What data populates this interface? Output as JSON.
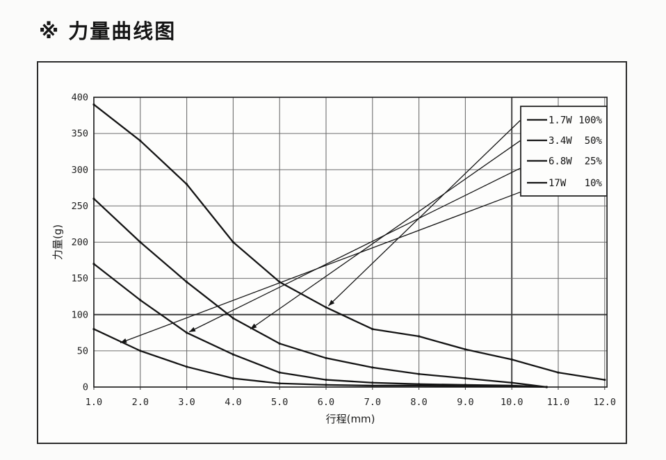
{
  "page": {
    "title": "※ 力量曲线图"
  },
  "chart_data": {
    "type": "line",
    "title": "※ 力量曲线图",
    "xlabel": "行程(mm)",
    "ylabel": "力量(g)",
    "xlim": [
      1.0,
      12.05
    ],
    "ylim": [
      0,
      400
    ],
    "x_tick_values": [
      1,
      2,
      3,
      4,
      5,
      6,
      7,
      8,
      9,
      10,
      11,
      12
    ],
    "x_ticks": [
      "1.0",
      "2.0",
      "3.0",
      "4.0",
      "5.0",
      "6.0",
      "7.0",
      "8.0",
      "9.0",
      "10.0",
      "11.0",
      "12.0"
    ],
    "y_tick_values": [
      0,
      50,
      100,
      150,
      200,
      250,
      300,
      350,
      400
    ],
    "y_ticks": [
      "0",
      "50",
      "100",
      "150",
      "200",
      "250",
      "300",
      "350",
      "400"
    ],
    "grid": "on",
    "emphasized_gridlines": {
      "x": 10,
      "y": 100
    },
    "series": [
      {
        "name": "1.7W 100%",
        "x": [
          1,
          2,
          3,
          4,
          5,
          6,
          7,
          8,
          9,
          10,
          11,
          12
        ],
        "values": [
          390,
          340,
          280,
          200,
          145,
          110,
          80,
          70,
          52,
          38,
          20,
          10
        ]
      },
      {
        "name": "3.4W 50%",
        "x": [
          1,
          2,
          3,
          4,
          5,
          6,
          7,
          8,
          9,
          10,
          10.75
        ],
        "values": [
          260,
          200,
          145,
          95,
          60,
          40,
          27,
          18,
          12,
          6,
          0
        ]
      },
      {
        "name": "6.8W 25%",
        "x": [
          1,
          2,
          3,
          4,
          5,
          6,
          7,
          8,
          9,
          10,
          10.75
        ],
        "values": [
          170,
          120,
          75,
          45,
          20,
          10,
          6,
          4,
          3,
          2,
          0
        ]
      },
      {
        "name": "17W 10%",
        "x": [
          1,
          2,
          3,
          4,
          5,
          6,
          7,
          8,
          9,
          10,
          10.75
        ],
        "values": [
          80,
          50,
          28,
          12,
          5,
          3,
          2,
          2,
          1,
          1,
          0
        ]
      }
    ],
    "legend": {
      "position": "top-right",
      "items": [
        {
          "label": "1.7W",
          "pct": "100%"
        },
        {
          "label": "3.4W",
          "pct": "50%"
        },
        {
          "label": "6.8W",
          "pct": "25%"
        },
        {
          "label": "17W",
          "pct": "10%"
        }
      ]
    },
    "annotations": [
      {
        "type": "leader-arrow",
        "series": "1.7W 100%",
        "from_x": 10.18,
        "from_y": 368,
        "to_x": 6.05,
        "to_y": 112
      },
      {
        "type": "leader-arrow",
        "series": "3.4W 50%",
        "from_x": 10.18,
        "from_y": 340,
        "to_x": 4.37,
        "to_y": 80
      },
      {
        "type": "leader-arrow",
        "series": "6.8W 25%",
        "from_x": 10.18,
        "from_y": 302,
        "to_x": 3.05,
        "to_y": 76
      },
      {
        "type": "leader-arrow",
        "series": "17W 10%",
        "from_x": 10.18,
        "from_y": 269,
        "to_x": 1.57,
        "to_y": 61
      }
    ],
    "colors": {
      "curve": "#141414",
      "grid": "#6e6e6e",
      "grid_major": "#3c3c3c",
      "plot_border": "#222222",
      "frame_border": "#2b2b2b",
      "legend_fill": "#fdfdfc"
    }
  }
}
